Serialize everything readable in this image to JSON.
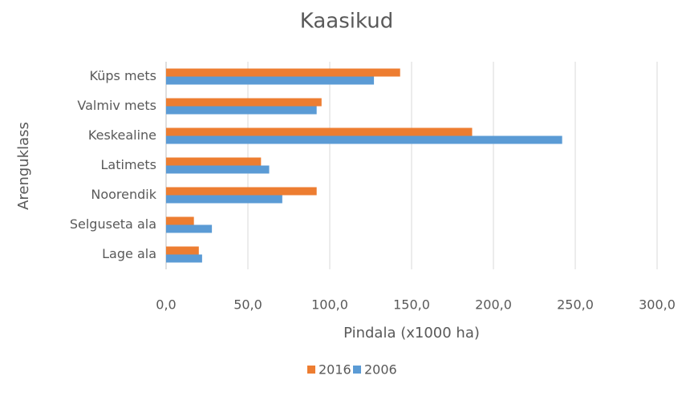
{
  "chart_data": {
    "type": "hbar",
    "title": "Kaasikud",
    "x_label": "Pindala (x1000 ha)",
    "y_label": "Arenguklass",
    "categories": [
      "Küps mets",
      "Valmiv mets",
      "Keskealine",
      "Latimets",
      "Noorendik",
      "Selguseta ala",
      "Lage ala"
    ],
    "series": [
      {
        "name": "2016",
        "color": "#ed7d31",
        "values": [
          143,
          95,
          187,
          58,
          92,
          17,
          20
        ]
      },
      {
        "name": "2006",
        "color": "#5b9bd5",
        "values": [
          127,
          92,
          242,
          63,
          71,
          28,
          22
        ]
      }
    ],
    "xlim": [
      0,
      300
    ],
    "xticks": [
      {
        "value": 0,
        "label": "0,0"
      },
      {
        "value": 50,
        "label": "50,0"
      },
      {
        "value": 100,
        "label": "100,0"
      },
      {
        "value": 150,
        "label": "150,0"
      },
      {
        "value": 200,
        "label": "200,0"
      },
      {
        "value": 250,
        "label": "250,0"
      },
      {
        "value": 300,
        "label": "300,0"
      }
    ],
    "grid": true,
    "legend": "bottom"
  }
}
